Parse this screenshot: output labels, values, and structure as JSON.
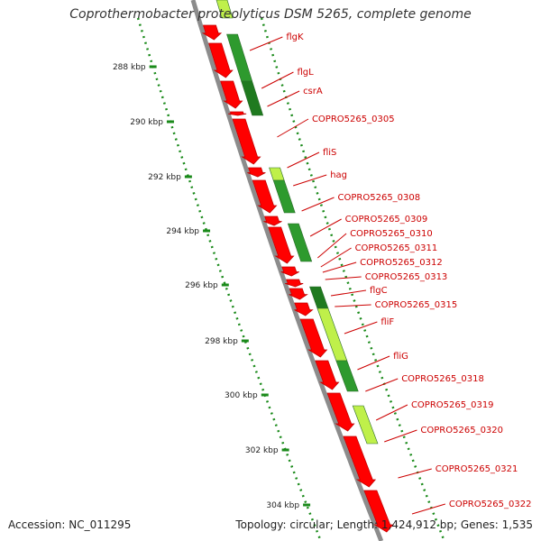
{
  "title": "Coprothermobacter proteolyticus DSM 5265, complete genome",
  "footer": {
    "accession": "Accession: NC_011295",
    "summary": "Topology: circular; Length: 1,424,912 bp; Genes: 1,535"
  },
  "colors": {
    "cds": "#ff0000",
    "cds_dark": "#c40000",
    "feature_dark": "#1f7a1f",
    "feature_mid": "#2e9a2e",
    "feature_light": "#bff04a",
    "backbone": "#8c8c8c",
    "tick": "#1a8a1a",
    "label": "#cc0000"
  },
  "ticks": [
    "288 kbp",
    "290 kbp",
    "292 kbp",
    "294 kbp",
    "296 kbp",
    "298 kbp",
    "300 kbp",
    "302 kbp",
    "304 kbp"
  ],
  "gene_labels": [
    "flgK",
    "flgL",
    "csrA",
    "COPRO5265_0305",
    "fliS",
    "hag",
    "COPRO5265_0308",
    "COPRO5265_0309",
    "COPRO5265_0310",
    "COPRO5265_0311",
    "COPRO5265_0312",
    "COPRO5265_0313",
    "flgC",
    "COPRO5265_0315",
    "fliF",
    "fliG",
    "COPRO5265_0318",
    "COPRO5265_0319",
    "COPRO5265_0320",
    "COPRO5265_0321",
    "COPRO5265_0322"
  ]
}
